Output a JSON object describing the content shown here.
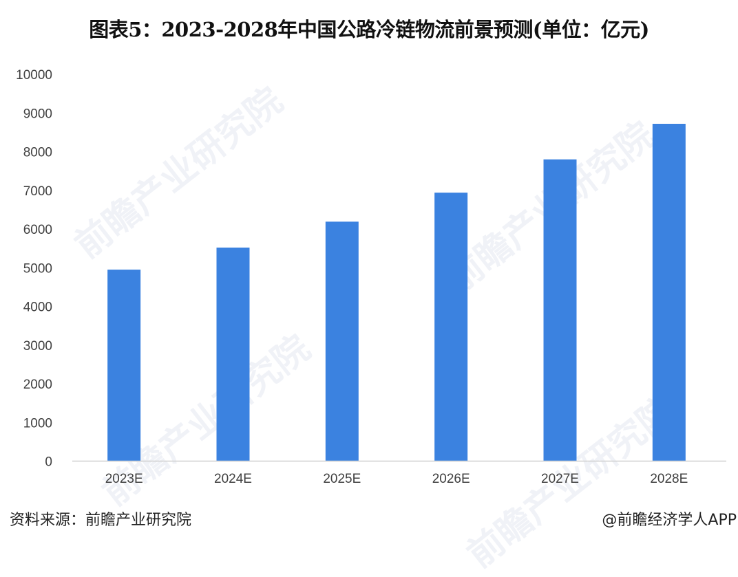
{
  "chart_data": {
    "type": "bar",
    "title": "图表5：2023-2028年中国公路冷链物流前景预测(单位：亿元)",
    "categories": [
      "2023E",
      "2024E",
      "2025E",
      "2026E",
      "2027E",
      "2028E"
    ],
    "values": [
      4950,
      5520,
      6190,
      6940,
      7800,
      8720
    ],
    "ylim": [
      0,
      10000
    ],
    "yticks": [
      "0",
      "1000",
      "2000",
      "3000",
      "4000",
      "5000",
      "6000",
      "7000",
      "8000",
      "9000",
      "10000"
    ],
    "xlabel": "",
    "ylabel": "",
    "grid": false,
    "bar_color": "#3b82e0",
    "axis_color": "#d0d0d0"
  },
  "footer": {
    "source": "资料来源：前瞻产业研究院",
    "credit": "@前瞻经济学人APP"
  },
  "watermark": "前瞻产业研究院"
}
